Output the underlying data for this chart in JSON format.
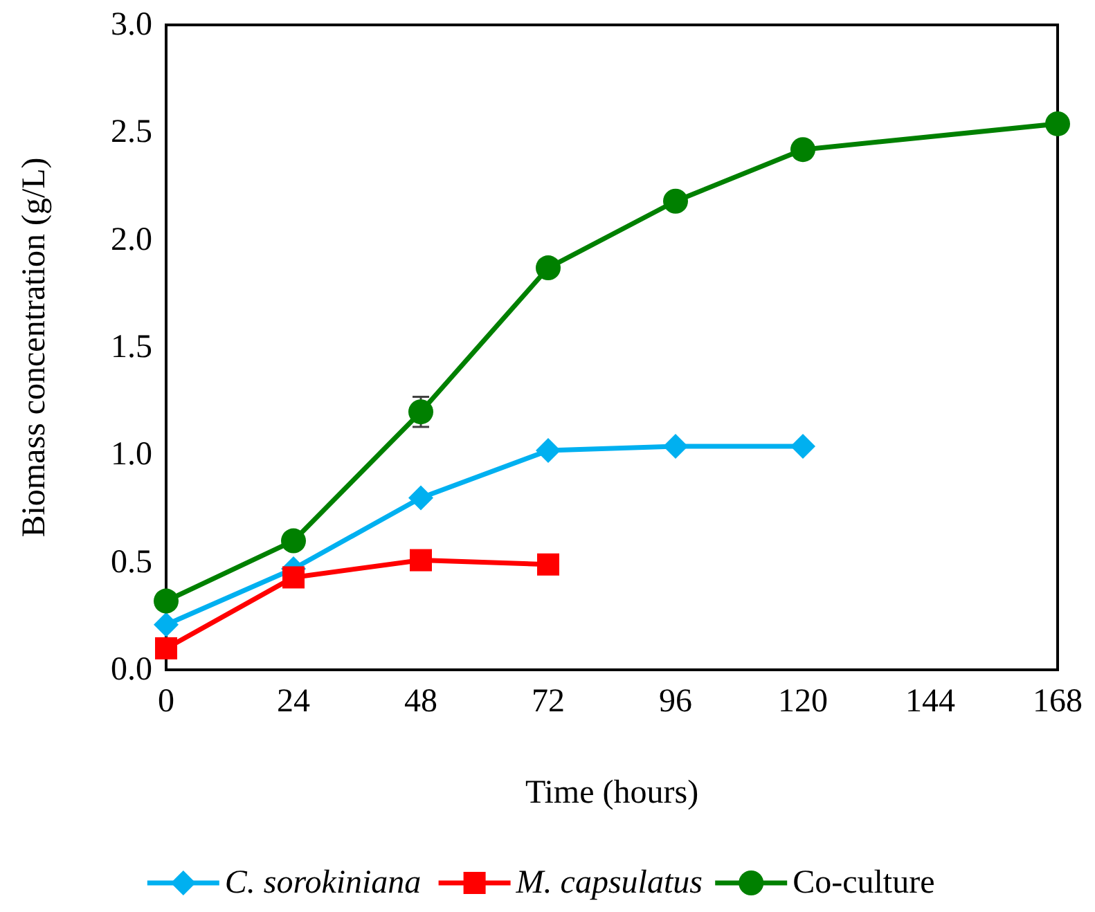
{
  "chart_data": {
    "type": "line",
    "xlabel": "Time (hours)",
    "ylabel": "Biomass concentration (g/L)",
    "xlim": [
      0,
      168
    ],
    "xticks": [
      0,
      24,
      48,
      72,
      96,
      120,
      144,
      168
    ],
    "ylim": [
      0,
      3
    ],
    "yticks": [
      {
        "value": 0,
        "label": "0.0"
      },
      {
        "value": 0.5,
        "label": "0.5"
      },
      {
        "value": 1,
        "label": "1.0"
      },
      {
        "value": 1.5,
        "label": "1.5"
      },
      {
        "value": 2,
        "label": "2.0"
      },
      {
        "value": 2.5,
        "label": "2.5"
      },
      {
        "value": 3,
        "label": "3.0"
      }
    ],
    "grid": false,
    "legend": "bottom",
    "series": [
      {
        "name": "C. sorokiniana",
        "color": "#00b0f0",
        "marker": "diamond",
        "x": [
          0,
          24,
          48,
          72,
          96,
          120
        ],
        "values": [
          0.21,
          0.47,
          0.8,
          1.02,
          1.04,
          1.04
        ]
      },
      {
        "name": "M. capsulatus",
        "color": "#ff0000",
        "marker": "square",
        "x": [
          0,
          24,
          48,
          72
        ],
        "values": [
          0.1,
          0.43,
          0.51,
          0.49
        ]
      },
      {
        "name": "Co-culture",
        "color": "#008000",
        "marker": "circle",
        "x": [
          0,
          24,
          48,
          72,
          96,
          120,
          168
        ],
        "values": [
          0.32,
          0.6,
          1.2,
          1.87,
          2.18,
          2.42,
          2.54
        ],
        "errors": [
          null,
          null,
          0.07,
          null,
          null,
          null,
          null
        ]
      }
    ]
  }
}
